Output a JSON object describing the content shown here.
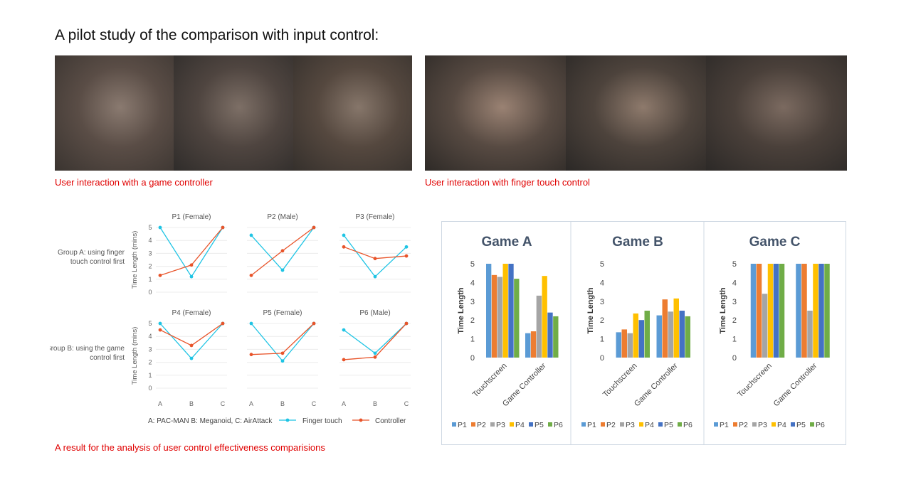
{
  "page_title": "A pilot study of the comparison with input control:",
  "photos": {
    "controller": [
      {
        "name": "controller-photo-1",
        "tone": [
          "#3a3430",
          "#5a4d46",
          "#8a7a70"
        ]
      },
      {
        "name": "controller-photo-2",
        "tone": [
          "#2f2c2a",
          "#4f4540",
          "#7d6f66"
        ]
      },
      {
        "name": "controller-photo-3",
        "tone": [
          "#35302c",
          "#55483f",
          "#86766a"
        ]
      }
    ],
    "touch": [
      {
        "name": "touch-photo-1",
        "tone": [
          "#2e2a27",
          "#574a42",
          "#9a8273"
        ]
      },
      {
        "name": "touch-photo-2",
        "tone": [
          "#2b2826",
          "#4d433c",
          "#8e7a6c"
        ]
      },
      {
        "name": "touch-photo-3",
        "tone": [
          "#2c2927",
          "#4a403a",
          "#7b6a60"
        ]
      }
    ]
  },
  "captions": {
    "controller": "User interaction with a game controller",
    "touch": "User interaction with finger touch control",
    "result": "A result for the analysis of user control effectiveness comparisions"
  },
  "colors": {
    "finger": "#1fc4e4",
    "controller": "#e8542a",
    "P1": "#5b9bd5",
    "P2": "#ed7d31",
    "P3": "#a5a5a5",
    "P4": "#ffc000",
    "P5": "#4472c4",
    "P6": "#70ad47"
  },
  "chart_data": [
    {
      "type": "line",
      "layout": "small-multiples-2x3",
      "group_labels": [
        "Group A: using finger touch control first",
        "Group B: using the game control first"
      ],
      "ylabel": "Time Length (mins)",
      "ylim": [
        0,
        5
      ],
      "yticks": [
        0,
        1,
        2,
        3,
        4,
        5
      ],
      "categories": [
        "A",
        "B",
        "C"
      ],
      "note": "A: PAC-MAN B: Meganoid, C: AirAttack",
      "legend": [
        "Finger touch",
        "Controller"
      ],
      "legend_position": "bottom",
      "panels": [
        {
          "title": "P1 (Female)",
          "finger": [
            5,
            1.2,
            5
          ],
          "controller": [
            1.3,
            2.1,
            5
          ]
        },
        {
          "title": "P2 (Male)",
          "finger": [
            4.4,
            1.7,
            5
          ],
          "controller": [
            1.3,
            3.2,
            5
          ]
        },
        {
          "title": "P3 (Female)",
          "finger": [
            4.4,
            1.2,
            3.5
          ],
          "controller": [
            3.5,
            2.6,
            2.8
          ]
        },
        {
          "title": "P4 (Female)",
          "finger": [
            5,
            2.3,
            5
          ],
          "controller": [
            4.5,
            3.3,
            5
          ]
        },
        {
          "title": "P5 (Female)",
          "finger": [
            5,
            2.1,
            5
          ],
          "controller": [
            2.6,
            2.7,
            5
          ]
        },
        {
          "title": "P6 (Male)",
          "finger": [
            4.5,
            2.7,
            5
          ],
          "controller": [
            2.2,
            2.4,
            5
          ]
        }
      ]
    },
    {
      "type": "bar",
      "title": "Game A",
      "ylabel": "Time Length",
      "ylim": [
        0,
        5
      ],
      "yticks": [
        0,
        1,
        2,
        3,
        4,
        5
      ],
      "categories": [
        "Touchscreen",
        "Game Controller"
      ],
      "series": [
        {
          "name": "P1",
          "values": [
            5,
            1.3
          ]
        },
        {
          "name": "P2",
          "values": [
            4.4,
            1.4
          ]
        },
        {
          "name": "P3",
          "values": [
            4.3,
            3.3
          ]
        },
        {
          "name": "P4",
          "values": [
            5,
            4.35
          ]
        },
        {
          "name": "P5",
          "values": [
            5,
            2.4
          ]
        },
        {
          "name": "P6",
          "values": [
            4.2,
            2.2
          ]
        }
      ],
      "legend_position": "bottom"
    },
    {
      "type": "bar",
      "title": "Game B",
      "ylabel": "Time Length",
      "ylim": [
        0,
        5
      ],
      "yticks": [
        0,
        1,
        2,
        3,
        4,
        5
      ],
      "categories": [
        "Touchscreen",
        "Game Controller"
      ],
      "series": [
        {
          "name": "P1",
          "values": [
            1.35,
            2.25
          ]
        },
        {
          "name": "P2",
          "values": [
            1.5,
            3.1
          ]
        },
        {
          "name": "P3",
          "values": [
            1.3,
            2.45
          ]
        },
        {
          "name": "P4",
          "values": [
            2.35,
            3.15
          ]
        },
        {
          "name": "P5",
          "values": [
            2.0,
            2.5
          ]
        },
        {
          "name": "P6",
          "values": [
            2.5,
            2.2
          ]
        }
      ],
      "legend_position": "bottom"
    },
    {
      "type": "bar",
      "title": "Game C",
      "ylabel": "Time Length",
      "ylim": [
        0,
        5
      ],
      "yticks": [
        0,
        1,
        2,
        3,
        4,
        5
      ],
      "categories": [
        "Touchscreen",
        "Game Controller"
      ],
      "series": [
        {
          "name": "P1",
          "values": [
            5,
            5
          ]
        },
        {
          "name": "P2",
          "values": [
            5,
            5
          ]
        },
        {
          "name": "P3",
          "values": [
            3.4,
            2.5
          ]
        },
        {
          "name": "P4",
          "values": [
            5,
            5
          ]
        },
        {
          "name": "P5",
          "values": [
            5,
            5
          ]
        },
        {
          "name": "P6",
          "values": [
            5,
            5
          ]
        }
      ],
      "legend_position": "bottom"
    }
  ]
}
